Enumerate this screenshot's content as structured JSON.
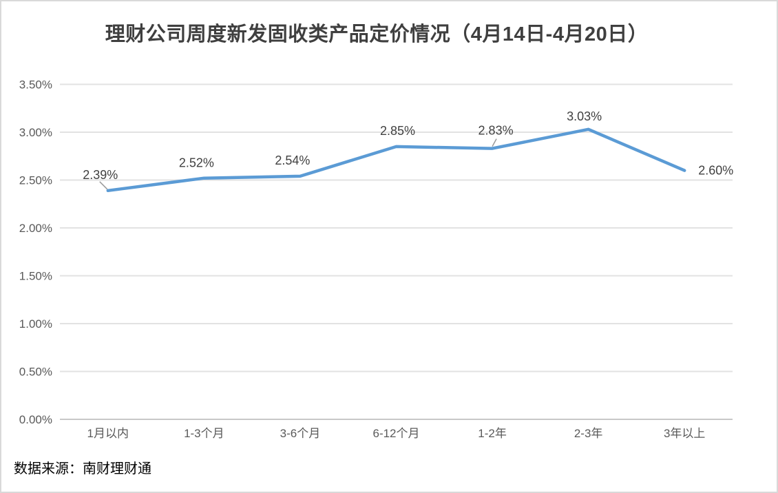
{
  "title": "理财公司周度新发固收类产品定价情况（4月14日-4月20日）",
  "source_note": "数据来源：南财理财通",
  "colors": {
    "line": "#5B9BD5",
    "grid": "#E2E2E2",
    "axis": "#C8C8C8",
    "data_label": "#404040",
    "tick_label": "#595959",
    "title": "#3F3F3F",
    "leader": "#999999",
    "border": "#D9D9D9"
  },
  "chart_data": {
    "type": "line",
    "title": "理财公司周度新发固收类产品定价情况（4月14日-4月20日）",
    "categories": [
      "1月以内",
      "1-3个月",
      "3-6个月",
      "6-12个月",
      "1-2年",
      "2-3年",
      "3年以上"
    ],
    "values": [
      2.39,
      2.52,
      2.54,
      2.85,
      2.83,
      3.03,
      2.6
    ],
    "point_labels": [
      "2.39%",
      "2.52%",
      "2.54%",
      "2.85%",
      "2.83%",
      "3.03%",
      "2.60%"
    ],
    "y_axis_ticks": [
      "3.50%",
      "3.00%",
      "2.50%",
      "2.00%",
      "1.50%",
      "1.00%",
      "0.50%",
      "0.00%"
    ],
    "xlabel": "",
    "ylabel": "",
    "ylim": [
      0,
      3.5
    ],
    "y_tick_step": 0.5,
    "grid": true,
    "legend_position": "none",
    "source": "数据来源：南财理财通"
  }
}
